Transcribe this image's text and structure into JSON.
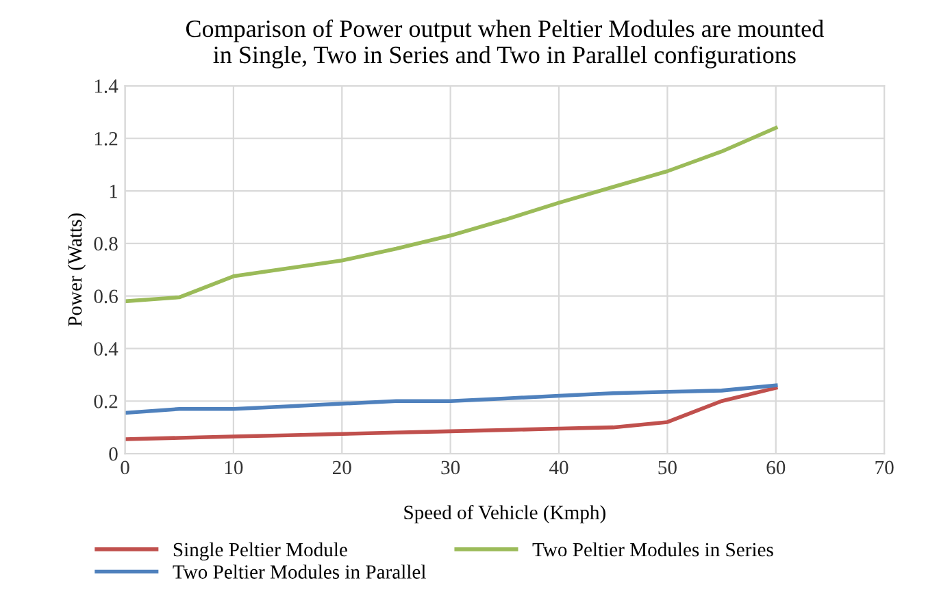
{
  "chart_data": {
    "type": "line",
    "title": "Comparison of Power output when Peltier Modules are mounted\nin Single, Two in Series and Two in Parallel configurations",
    "xlabel": "Speed of Vehicle (Kmph)",
    "ylabel": "Power (Watts)",
    "x": [
      0,
      5,
      10,
      15,
      20,
      25,
      30,
      35,
      40,
      45,
      50,
      55,
      60
    ],
    "series": [
      {
        "name": "Single Peltier Module",
        "color": "#c0504d",
        "values": [
          0.055,
          0.06,
          0.065,
          0.07,
          0.075,
          0.08,
          0.085,
          0.09,
          0.095,
          0.1,
          0.12,
          0.2,
          0.25
        ]
      },
      {
        "name": "Two Peltier Modules in Series",
        "color": "#9bbb59",
        "values": [
          0.58,
          0.595,
          0.675,
          0.705,
          0.735,
          0.78,
          0.83,
          0.89,
          0.955,
          1.015,
          1.075,
          1.15,
          1.24
        ]
      },
      {
        "name": "Two Peltier Modules in Parallel",
        "color": "#4f81bd",
        "values": [
          0.155,
          0.17,
          0.17,
          0.18,
          0.19,
          0.2,
          0.2,
          0.21,
          0.22,
          0.23,
          0.235,
          0.24,
          0.26
        ]
      }
    ],
    "xlim": [
      0,
      70
    ],
    "xticks": [
      0,
      10,
      20,
      30,
      40,
      50,
      60,
      70
    ],
    "ylim": [
      0,
      1.4
    ],
    "yticks": [
      0,
      {
        "value": 0.2,
        "label": "0.2"
      },
      {
        "value": 0.4,
        "label": "0.4"
      },
      {
        "value": 0.6,
        "label": "0.6"
      },
      {
        "value": 0.8,
        "label": "0.8"
      },
      1,
      {
        "value": 1.2,
        "label": "1.2"
      },
      {
        "value": 1.4,
        "label": "1.4"
      }
    ],
    "grid": true,
    "legend": "bottom",
    "marker": "none",
    "line_style": "solid"
  }
}
